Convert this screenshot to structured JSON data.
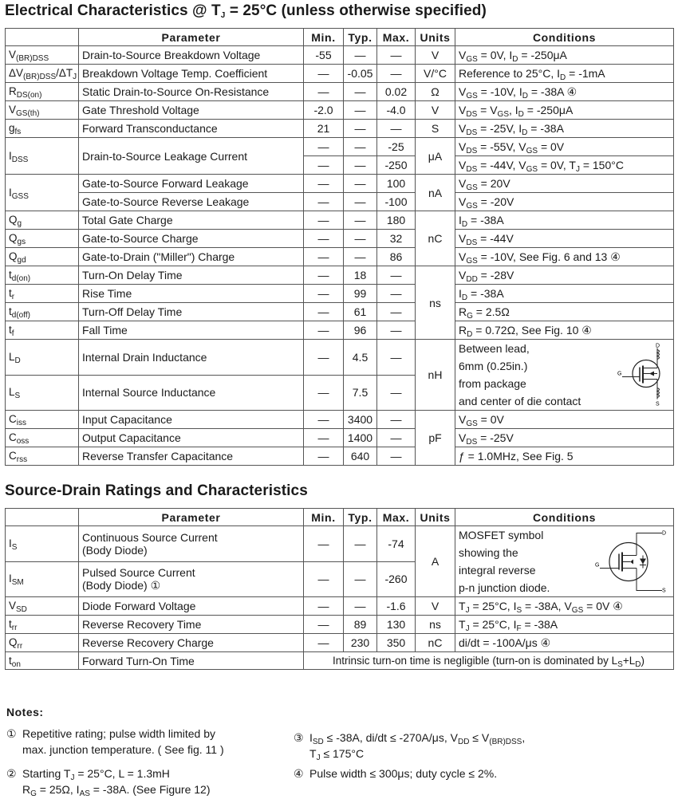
{
  "title1": "Electrical Characteristics @ T_{J} = 25°C (unless otherwise specified)",
  "title2": "Source-Drain Ratings and Characteristics",
  "headers": [
    "",
    "Parameter",
    "Min.",
    "Typ.",
    "Max.",
    "Units",
    "Conditions"
  ],
  "table1": [
    {
      "sym": "V_{(BR)DSS}",
      "param": "Drain-to-Source Breakdown Voltage",
      "min": "-55",
      "typ": "—",
      "max": "—",
      "units": "V",
      "cond": "V_{GS} = 0V, I_{D} = -250μA"
    },
    {
      "sym": "ΔV_{(BR)DSS}/ΔT_{J}",
      "param": "Breakdown Voltage Temp. Coefficient",
      "min": "—",
      "typ": "-0.05",
      "max": "—",
      "units": "V/°C",
      "cond": "Reference to 25°C, I_{D} = -1mA"
    },
    {
      "sym": "R_{DS(on)}",
      "param": "Static Drain-to-Source On-Resistance",
      "min": "—",
      "typ": "—",
      "max": "0.02",
      "units": "Ω",
      "cond": "V_{GS} = -10V, I_{D} = -38A ④"
    },
    {
      "sym": "V_{GS(th)}",
      "param": "Gate Threshold Voltage",
      "min": "-2.0",
      "typ": "—",
      "max": "-4.0",
      "units": "V",
      "cond": "V_{DS} = V_{GS}, I_{D} = -250μA"
    },
    {
      "sym": "g_{fs}",
      "param": "Forward  Transconductance",
      "min": "21",
      "typ": "—",
      "max": "—",
      "units": "S",
      "cond": "V_{DS} = -25V, I_{D} = -38A"
    },
    {
      "sym": "I_{DSS}",
      "param": "Drain-to-Source Leakage Current",
      "min": "—",
      "typ": "—",
      "max": "-25",
      "units": "μA",
      "cond": "V_{DS} = -55V, V_{GS} = 0V"
    },
    {
      "sym": null,
      "param": null,
      "min": "—",
      "typ": "—",
      "max": "-250",
      "units": null,
      "cond": "V_{DS} = -44V, V_{GS} = 0V, T_{J} = 150°C"
    },
    {
      "sym": "I_{GSS}",
      "param": "Gate-to-Source  Forward  Leakage",
      "min": "—",
      "typ": "—",
      "max": "100",
      "units": "nA",
      "cond": "V_{GS} = 20V"
    },
    {
      "sym": null,
      "param": "Gate-to-Source  Reverse  Leakage",
      "min": "—",
      "typ": "—",
      "max": "-100",
      "units": null,
      "cond": "V_{GS} = -20V"
    },
    {
      "sym": "Q_{g}",
      "param": "Total Gate Charge",
      "min": "—",
      "typ": "—",
      "max": "180",
      "units": "nC",
      "cond": "I_{D} = -38A"
    },
    {
      "sym": "Q_{gs}",
      "param": "Gate-to-Source  Charge",
      "min": "—",
      "typ": "—",
      "max": "32",
      "units": null,
      "cond": "V_{DS} = -44V"
    },
    {
      "sym": "Q_{gd}",
      "param": "Gate-to-Drain (\"Miller\") Charge",
      "min": "—",
      "typ": "—",
      "max": "86",
      "units": null,
      "cond": "V_{GS} = -10V, See Fig. 6 and 13 ④"
    },
    {
      "sym": "t_{d(on)}",
      "param": "Turn-On Delay Time",
      "min": "—",
      "typ": "18",
      "max": "—",
      "units": "ns",
      "cond": "V_{DD} = -28V"
    },
    {
      "sym": "t_{r}",
      "param": "Rise Time",
      "min": "—",
      "typ": "99",
      "max": "—",
      "units": null,
      "cond": "I_{D} = -38A"
    },
    {
      "sym": "t_{d(off)}",
      "param": "Turn-Off  Delay  Time",
      "min": "—",
      "typ": "61",
      "max": "—",
      "units": null,
      "cond": "R_{G} = 2.5Ω"
    },
    {
      "sym": "t_{f}",
      "param": "Fall Time",
      "min": "—",
      "typ": "96",
      "max": "—",
      "units": null,
      "cond": "R_{D} = 0.72Ω, See Fig. 10 ④"
    },
    {
      "sym": "L_{D}",
      "param": "Internal Drain Inductance",
      "min": "—",
      "typ": "4.5",
      "max": "—",
      "units": "nH",
      "cond": "Between  lead,\n6mm (0.25in.)\nfrom package\nand center of die contact",
      "tall": true,
      "symbol": "mosfet-inductance"
    },
    {
      "sym": "L_{S}",
      "param": "Internal Source Inductance",
      "min": "—",
      "typ": "7.5",
      "max": "—",
      "units": null,
      "cond": null,
      "tall": true
    },
    {
      "sym": "C_{iss}",
      "param": "Input Capacitance",
      "min": "—",
      "typ": "3400",
      "max": "—",
      "units": "pF",
      "cond": "V_{GS} = 0V"
    },
    {
      "sym": "C_{oss}",
      "param": "Output Capacitance",
      "min": "—",
      "typ": "1400",
      "max": "—",
      "units": null,
      "cond": "V_{DS} = -25V"
    },
    {
      "sym": "C_{rss}",
      "param": "Reverse  Transfer  Capacitance",
      "min": "—",
      "typ": "640",
      "max": "—",
      "units": null,
      "cond": "ƒ = 1.0MHz, See Fig. 5"
    }
  ],
  "table2": [
    {
      "sym": "I_{S}",
      "param": "Continuous Source Current\n(Body Diode)",
      "min": "—",
      "typ": "—",
      "max": "-74",
      "units": "A",
      "cond": "MOSFET symbol\nshowing   the\nintegral reverse\np-n junction diode.",
      "tall": true,
      "symbol": "mosfet-diode"
    },
    {
      "sym": "I_{SM}",
      "param": "Pulsed Source Current\n(Body Diode) ①",
      "min": "—",
      "typ": "—",
      "max": "-260",
      "units": null,
      "cond": null,
      "tall": true
    },
    {
      "sym": "V_{SD}",
      "param": "Diode Forward Voltage",
      "min": "—",
      "typ": "—",
      "max": "-1.6",
      "units": "V",
      "cond": "T_{J} = 25°C, I_{S} = -38A, V_{GS} = 0V ④"
    },
    {
      "sym": "t_{rr}",
      "param": "Reverse Recovery Time",
      "min": "—",
      "typ": "89",
      "max": "130",
      "units": "ns",
      "cond": "T_{J} = 25°C, I_{F} = -38A"
    },
    {
      "sym": "Q_{rr}",
      "param": "Reverse Recovery Charge",
      "min": "—",
      "typ": "230",
      "max": "350",
      "units": "nC",
      "cond": "di/dt = -100A/μs ④"
    },
    {
      "sym": "t_{on}",
      "param": "Forward Turn-On Time",
      "merged": "Intrinsic turn-on time is negligible (turn-on is dominated by L_{S}+L_{D})"
    }
  ],
  "notes": {
    "title": "Notes:",
    "items": [
      {
        "mark": "①",
        "text": "Repetitive rating;  pulse width limited by\nmax. junction temperature. ( See fig. 11 )"
      },
      {
        "mark": "③",
        "text": "I_{SD} ≤ -38A, di/dt ≤ -270A/μs, V_{DD} ≤ V_{(BR)DSS},\nT_{J} ≤ 175°C"
      },
      {
        "mark": "②",
        "text": "Starting T_{J} = 25°C, L = 1.3mH\nR_{G} = 25Ω, I_{AS} = -38A. (See Figure 12)"
      },
      {
        "mark": "④",
        "text": "Pulse width ≤ 300μs; duty cycle ≤ 2%."
      }
    ]
  }
}
